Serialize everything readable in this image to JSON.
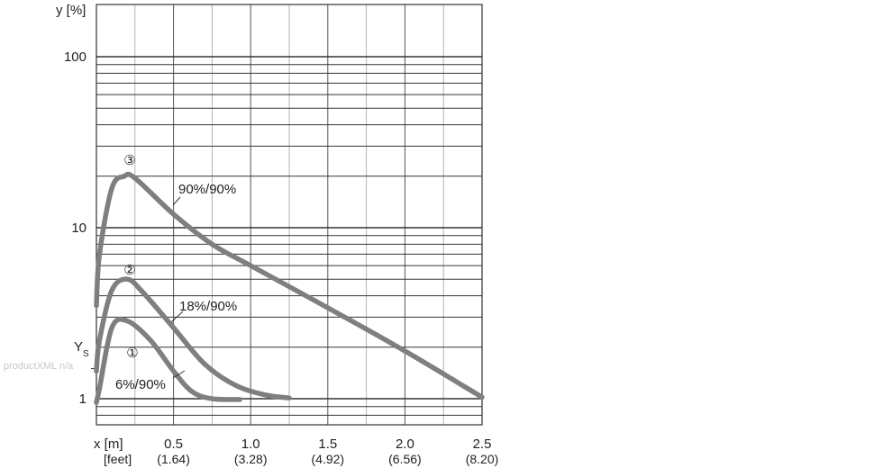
{
  "watermark": "productXML n/a",
  "chart_data": {
    "type": "line",
    "ylabel": "y [%]",
    "xlabel": "x [m]",
    "xlabel_secondary": "[feet]",
    "y_scale": "log",
    "xlim": [
      0,
      2.5
    ],
    "ylim": [
      0.8,
      200
    ],
    "x_ticks": [
      {
        "value": 0.5,
        "label": "0.5",
        "feet": "(1.64)"
      },
      {
        "value": 1.0,
        "label": "1.0",
        "feet": "(3.28)"
      },
      {
        "value": 1.5,
        "label": "1.5",
        "feet": "(4.92)"
      },
      {
        "value": 2.0,
        "label": "2.0",
        "feet": "(6.56)"
      },
      {
        "value": 2.5,
        "label": "2.5",
        "feet": "(8.20)"
      }
    ],
    "y_ticks": [
      {
        "value": 1,
        "label": "1"
      },
      {
        "value": 10,
        "label": "10"
      },
      {
        "value": 100,
        "label": "100"
      }
    ],
    "ys_marker": {
      "label": "Y",
      "subscript": "S",
      "value": 1.5
    },
    "grid": true,
    "line_color": "#7f7f7f",
    "series": [
      {
        "marker": "①",
        "label": "6%/90%",
        "points": [
          [
            0.0,
            0.95
          ],
          [
            0.02,
            1.15
          ],
          [
            0.1,
            2.6
          ],
          [
            0.2,
            2.85
          ],
          [
            0.35,
            2.2
          ],
          [
            0.5,
            1.45
          ],
          [
            0.62,
            1.1
          ],
          [
            0.75,
            1.0
          ],
          [
            0.93,
            0.99
          ]
        ]
      },
      {
        "marker": "②",
        "label": "18%/90%",
        "points": [
          [
            0.0,
            1.45
          ],
          [
            0.02,
            2.2
          ],
          [
            0.1,
            4.3
          ],
          [
            0.2,
            5.0
          ],
          [
            0.3,
            4.2
          ],
          [
            0.5,
            2.6
          ],
          [
            0.7,
            1.6
          ],
          [
            0.9,
            1.2
          ],
          [
            1.1,
            1.05
          ],
          [
            1.25,
            1.01
          ]
        ]
      },
      {
        "marker": "③",
        "label": "90%/90%",
        "points": [
          [
            0.0,
            3.5
          ],
          [
            0.02,
            7.0
          ],
          [
            0.1,
            17.0
          ],
          [
            0.18,
            20.0
          ],
          [
            0.25,
            19.5
          ],
          [
            0.5,
            12.0
          ],
          [
            0.75,
            8.0
          ],
          [
            1.0,
            6.0
          ],
          [
            1.5,
            3.4
          ],
          [
            2.0,
            1.9
          ],
          [
            2.5,
            1.02
          ]
        ]
      }
    ]
  }
}
